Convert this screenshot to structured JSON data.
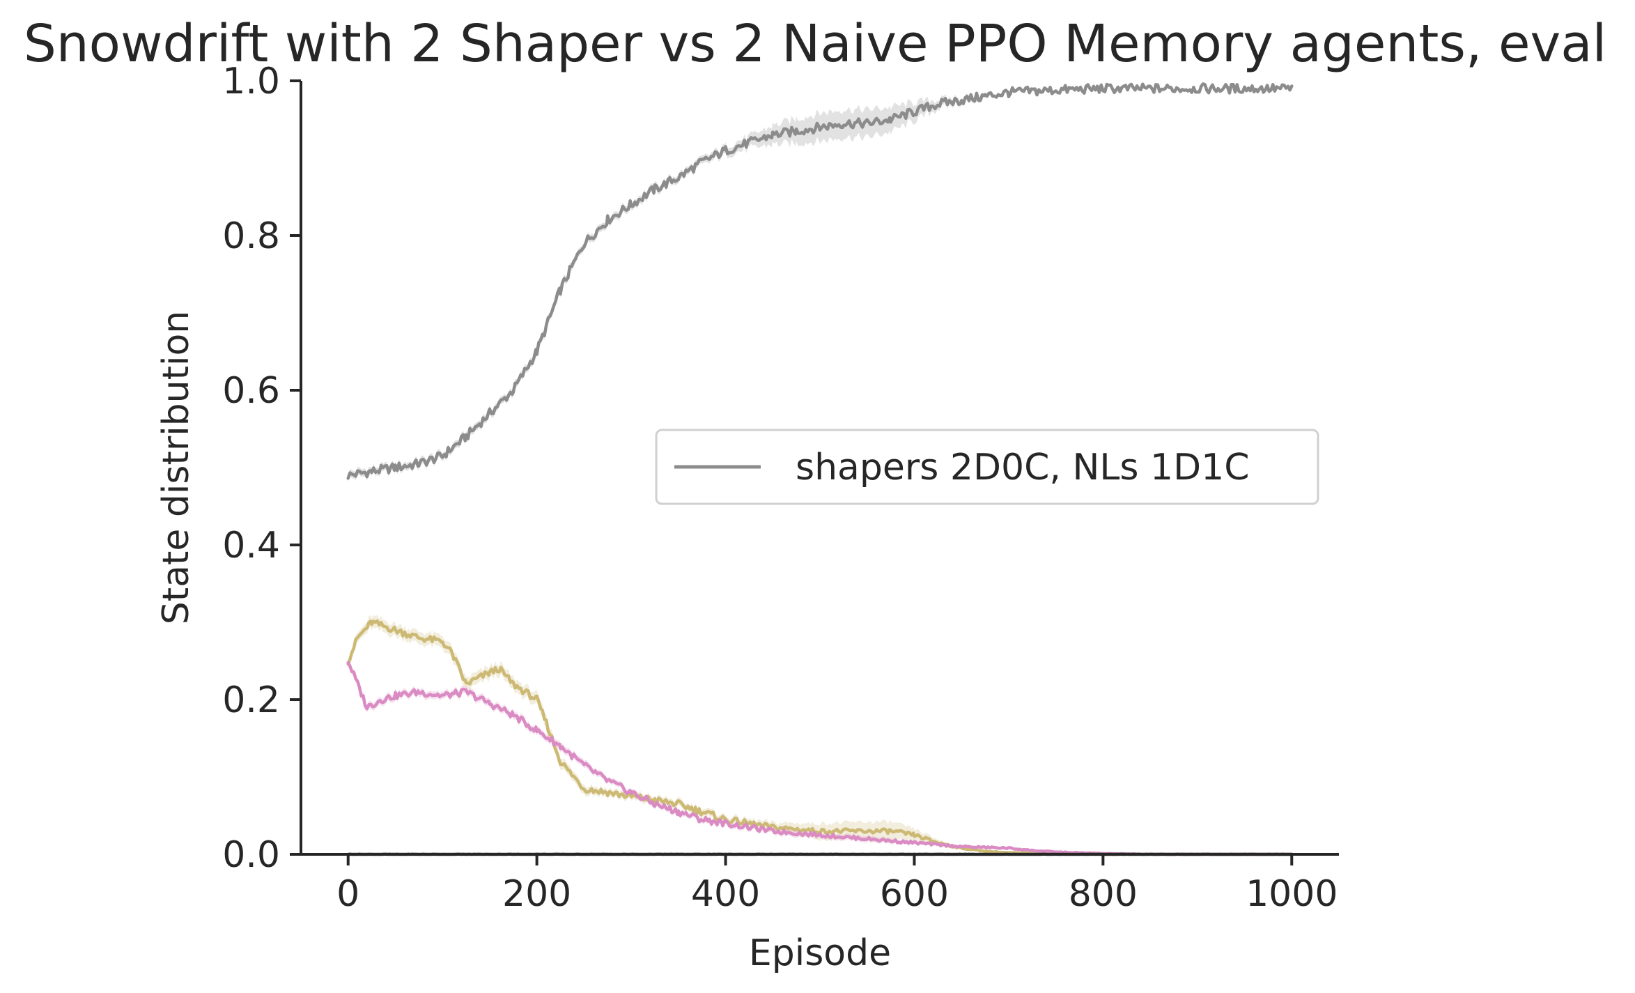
{
  "chart_data": {
    "type": "line",
    "title": "Snowdrift with 2 Shaper vs 2 Naive PPO Memory agents, eval",
    "xlabel": "Episode",
    "ylabel": "State distribution",
    "xlim": [
      -50,
      1050
    ],
    "ylim": [
      0.0,
      1.0
    ],
    "xticks": [
      0,
      200,
      400,
      600,
      800,
      1000
    ],
    "xtick_labels": [
      "0",
      "200",
      "400",
      "600",
      "800",
      "1000"
    ],
    "yticks": [
      0.0,
      0.2,
      0.4,
      0.6,
      0.8,
      1.0
    ],
    "ytick_labels": [
      "0.0",
      "0.2",
      "0.4",
      "0.6",
      "0.8",
      "1.0"
    ],
    "grid": false,
    "legend_position": "center-right",
    "legend": [
      {
        "label": "shapers 2D0C, NLs 1D1C",
        "color": "#8c8c8c"
      }
    ],
    "series": [
      {
        "name": "shapers 2D0C, NLs 1D1C",
        "color": "#8c8c8c",
        "x": [
          0,
          25,
          50,
          75,
          100,
          125,
          150,
          175,
          200,
          225,
          250,
          275,
          300,
          325,
          350,
          375,
          400,
          425,
          450,
          475,
          500,
          525,
          550,
          575,
          600,
          625,
          650,
          675,
          700,
          750,
          800,
          850,
          900,
          950,
          1000
        ],
        "y": [
          0.49,
          0.495,
          0.5,
          0.505,
          0.515,
          0.54,
          0.57,
          0.6,
          0.65,
          0.73,
          0.79,
          0.82,
          0.84,
          0.86,
          0.875,
          0.895,
          0.91,
          0.92,
          0.93,
          0.935,
          0.94,
          0.945,
          0.945,
          0.95,
          0.96,
          0.97,
          0.975,
          0.98,
          0.985,
          0.988,
          0.99,
          0.99,
          0.99,
          0.99,
          0.99
        ],
        "band": [
          0.005,
          0.005,
          0.005,
          0.005,
          0.005,
          0.005,
          0.005,
          0.005,
          0.005,
          0.005,
          0.005,
          0.005,
          0.005,
          0.005,
          0.005,
          0.005,
          0.006,
          0.008,
          0.012,
          0.016,
          0.018,
          0.018,
          0.018,
          0.016,
          0.012,
          0.006,
          0.004,
          0.003,
          0.002,
          0.002,
          0.002,
          0.002,
          0.002,
          0.002,
          0.002
        ]
      },
      {
        "color": "#ccb974",
        "x": [
          0,
          10,
          25,
          50,
          75,
          100,
          110,
          125,
          150,
          160,
          175,
          200,
          210,
          225,
          250,
          275,
          300,
          325,
          350,
          375,
          400,
          450,
          500,
          550,
          575,
          600,
          625,
          650,
          675,
          700,
          750,
          800,
          850,
          900,
          950,
          1000
        ],
        "y": [
          0.25,
          0.28,
          0.3,
          0.29,
          0.28,
          0.275,
          0.26,
          0.22,
          0.235,
          0.24,
          0.22,
          0.2,
          0.17,
          0.12,
          0.085,
          0.08,
          0.075,
          0.07,
          0.065,
          0.055,
          0.045,
          0.035,
          0.03,
          0.03,
          0.03,
          0.025,
          0.015,
          0.008,
          0.004,
          0.002,
          0.001,
          0.0,
          0.0,
          0.0,
          0.0,
          0.0
        ],
        "band": [
          0.005,
          0.006,
          0.008,
          0.008,
          0.008,
          0.008,
          0.008,
          0.008,
          0.008,
          0.008,
          0.008,
          0.008,
          0.008,
          0.007,
          0.006,
          0.005,
          0.005,
          0.005,
          0.005,
          0.005,
          0.005,
          0.006,
          0.01,
          0.012,
          0.012,
          0.008,
          0.004,
          0.002,
          0.001,
          0.001,
          0.001,
          0.0,
          0.0,
          0.0,
          0.0,
          0.0
        ]
      },
      {
        "color": "#da8bc3",
        "x": [
          0,
          10,
          20,
          35,
          50,
          75,
          100,
          125,
          150,
          175,
          200,
          225,
          250,
          275,
          300,
          325,
          350,
          375,
          400,
          450,
          500,
          550,
          600,
          650,
          700,
          725,
          750,
          800,
          850,
          900,
          950,
          1000
        ],
        "y": [
          0.25,
          0.22,
          0.19,
          0.2,
          0.205,
          0.21,
          0.205,
          0.21,
          0.195,
          0.18,
          0.16,
          0.14,
          0.115,
          0.095,
          0.08,
          0.065,
          0.055,
          0.045,
          0.04,
          0.03,
          0.025,
          0.02,
          0.015,
          0.01,
          0.008,
          0.005,
          0.003,
          0.001,
          0.0,
          0.0,
          0.0,
          0.0
        ],
        "band": [
          0.004,
          0.004,
          0.005,
          0.005,
          0.005,
          0.005,
          0.005,
          0.005,
          0.005,
          0.005,
          0.005,
          0.005,
          0.005,
          0.004,
          0.004,
          0.004,
          0.004,
          0.004,
          0.004,
          0.004,
          0.004,
          0.004,
          0.003,
          0.002,
          0.002,
          0.001,
          0.001,
          0.0,
          0.0,
          0.0,
          0.0,
          0.0
        ]
      },
      {
        "color": "#4c4c4c",
        "x": [
          0,
          1000
        ],
        "y": [
          0.0,
          0.0
        ],
        "band": [
          0.0,
          0.0
        ]
      }
    ]
  }
}
